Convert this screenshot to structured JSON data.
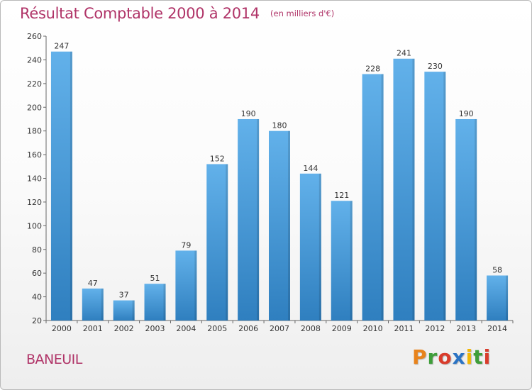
{
  "header": {
    "title": "Résultat Comptable 2000 à 2014",
    "subtitle": "(en milliers d'€)"
  },
  "footer": {
    "location": "BANEUIL",
    "logo": "Proxiti",
    "logo_colors": [
      "#e8831b",
      "#3f9e3a",
      "#d93c2c",
      "#2a73c4",
      "#f2b705",
      "#3f9e3a",
      "#d93c2c"
    ]
  },
  "colors": {
    "bar_top": "#62b1ea",
    "bar_bottom": "#2f7fbf",
    "title": "#b03468"
  },
  "chart_data": {
    "type": "bar",
    "categories": [
      "2000",
      "2001",
      "2002",
      "2003",
      "2004",
      "2005",
      "2006",
      "2007",
      "2008",
      "2009",
      "2010",
      "2011",
      "2012",
      "2013",
      "2014"
    ],
    "values": [
      247,
      47,
      37,
      51,
      79,
      152,
      190,
      180,
      144,
      121,
      228,
      241,
      230,
      190,
      58
    ],
    "title": "Résultat Comptable 2000 à 2014",
    "ylim": [
      20,
      260
    ],
    "yticks": [
      20,
      40,
      60,
      80,
      100,
      120,
      140,
      160,
      180,
      200,
      220,
      240,
      260
    ],
    "grid": false,
    "data_labels": true
  }
}
